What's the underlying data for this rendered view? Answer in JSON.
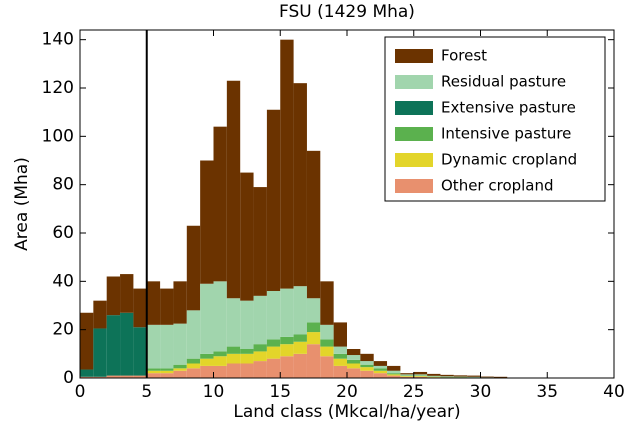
{
  "chart_data": {
    "type": "stacked-histogram",
    "title": "FSU (1429 Mha)",
    "x_label": "Land class (Mkcal/ha/year)",
    "y_label": "Area (Mha)",
    "bins": [
      0,
      1,
      2,
      3,
      4,
      5,
      6,
      7,
      8,
      9,
      10,
      11,
      12,
      13,
      14,
      15,
      16,
      17,
      18,
      19,
      20,
      21,
      22,
      23,
      24,
      25,
      26,
      27,
      28,
      29,
      30,
      31,
      32
    ],
    "series": [
      {
        "name": "Forest",
        "color": "#6b3300",
        "values": [
          23.5,
          11.5,
          16,
          16,
          16,
          18,
          15,
          17.5,
          35,
          51,
          64,
          90,
          53,
          45,
          75,
          103,
          84,
          61,
          18,
          10,
          2.5,
          3,
          2,
          2,
          0.5,
          1,
          0.8,
          0.6,
          0.5,
          0.5,
          0.3,
          0.3
        ]
      },
      {
        "name": "Residual pasture",
        "color": "#a1d5ad",
        "values": [
          0,
          0,
          0,
          0,
          0,
          18,
          18,
          17,
          20,
          29,
          29,
          20,
          20,
          20,
          20,
          20,
          20,
          10,
          6,
          3,
          2,
          1.5,
          1,
          1,
          0.5,
          0.5,
          0.3,
          0.3,
          0.2,
          0.2,
          0.1,
          0.1
        ]
      },
      {
        "name": "Extensive pasture",
        "color": "#0d7358",
        "values": [
          3,
          20,
          25,
          26,
          20,
          0,
          0,
          0,
          0,
          0,
          0,
          0,
          0,
          0,
          0,
          0,
          0,
          0,
          0,
          0,
          0,
          0,
          0,
          0,
          0,
          0,
          0,
          0,
          0,
          0,
          0,
          0
        ]
      },
      {
        "name": "Intensive pasture",
        "color": "#5bb14e",
        "values": [
          0,
          0,
          0,
          0,
          0,
          1,
          1,
          1.5,
          2,
          2,
          2,
          3,
          2,
          3,
          3,
          3,
          3,
          4,
          3,
          2,
          1.5,
          1,
          1,
          0.5,
          0.2,
          0.2,
          0.1,
          0.1,
          0.1,
          0.1,
          0,
          0
        ]
      },
      {
        "name": "Dynamic cropland",
        "color": "#e3d52a",
        "values": [
          0,
          0,
          0,
          0,
          0,
          1,
          1,
          1,
          2,
          3,
          4,
          4,
          4,
          4,
          5,
          5,
          5,
          5,
          4,
          3,
          2,
          1.5,
          1,
          0.5,
          0.3,
          0.3,
          0.2,
          0.1,
          0.1,
          0.1,
          0.1,
          0
        ]
      },
      {
        "name": "Other cropland",
        "color": "#e8906e",
        "values": [
          0.5,
          0.5,
          1,
          1,
          1,
          2,
          2,
          3,
          4,
          5,
          5,
          6,
          6,
          7,
          8,
          9,
          10,
          14,
          9,
          5,
          4,
          3,
          2,
          1,
          0.5,
          0.5,
          0.3,
          0.2,
          0.2,
          0.1,
          0.1,
          0.1
        ]
      }
    ],
    "xlim": [
      0,
      40
    ],
    "ylim": [
      0,
      144
    ],
    "xticks": [
      0,
      5,
      10,
      15,
      20,
      25,
      30,
      35,
      40
    ],
    "yticks": [
      0,
      20,
      40,
      60,
      80,
      100,
      120,
      140
    ],
    "vline": 5,
    "legend": "upper right",
    "grid": false
  }
}
